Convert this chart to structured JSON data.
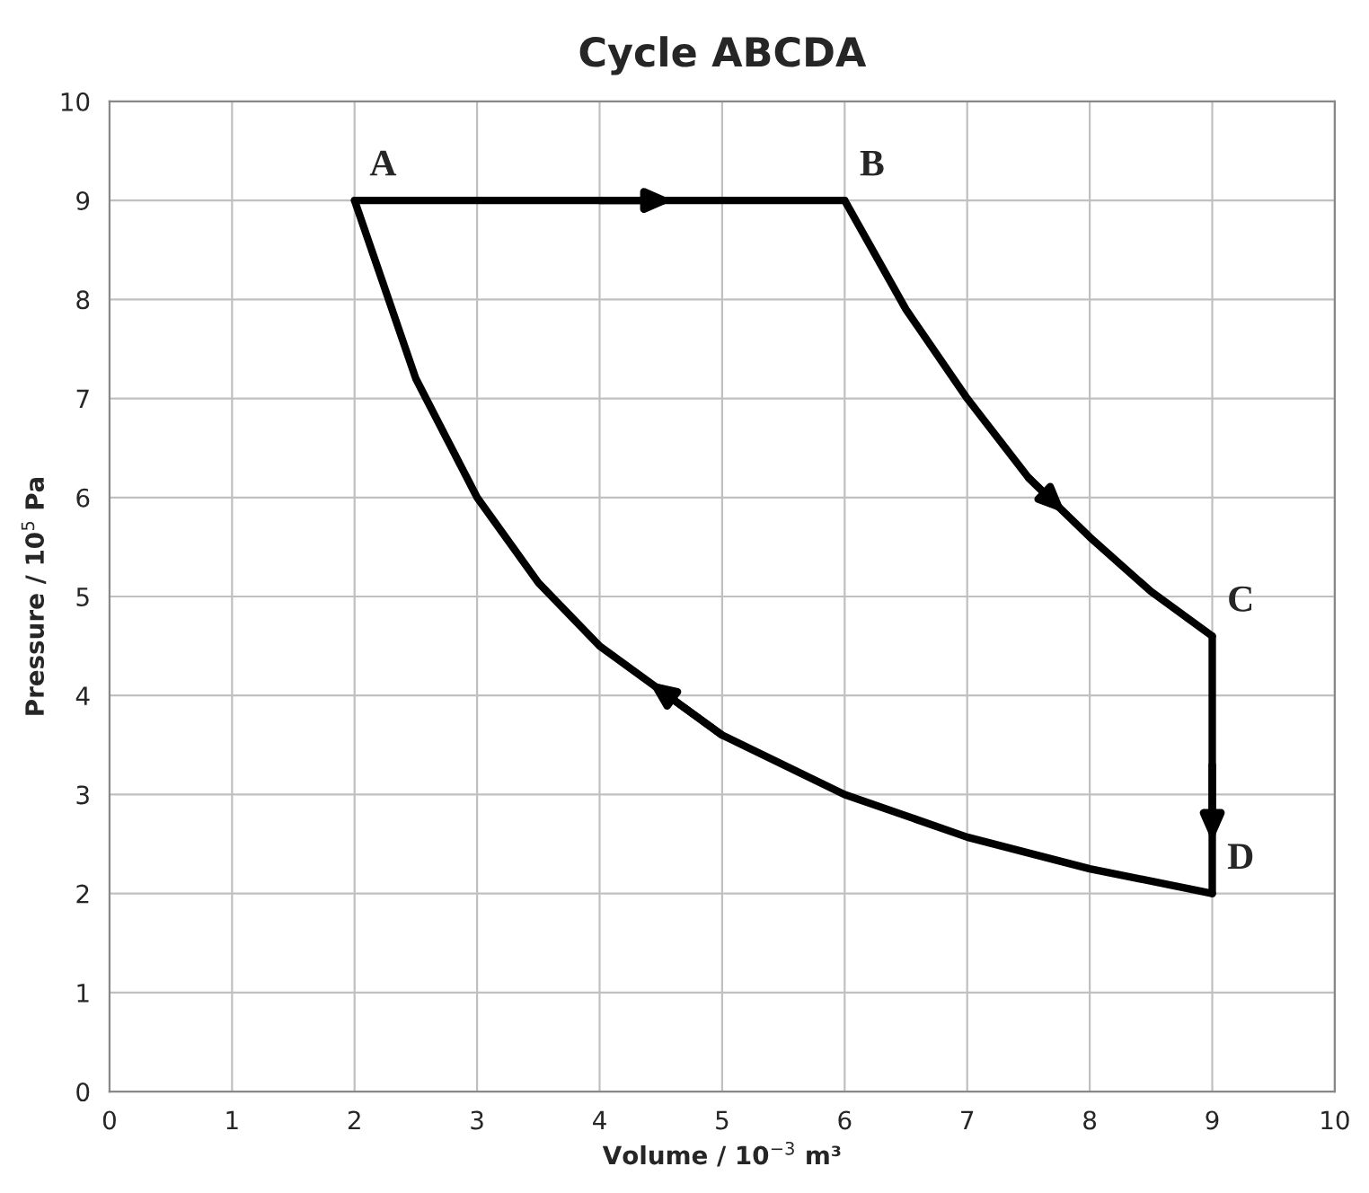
{
  "chart_data": {
    "type": "line",
    "title": "Cycle ABCDA",
    "xlabel": "Volume / 10$^{−3}$ m³",
    "ylabel": "Pressure / 10$^{5}$ Pa",
    "xlim": [
      0,
      10
    ],
    "ylim": [
      0,
      10
    ],
    "xticks": [
      0,
      1,
      2,
      3,
      4,
      5,
      6,
      7,
      8,
      9,
      10
    ],
    "yticks": [
      0,
      1,
      2,
      3,
      4,
      5,
      6,
      7,
      8,
      9,
      10
    ],
    "grid": true,
    "marker": "none",
    "line_style": "solid",
    "series": [
      {
        "color": "#000000",
        "x": [
          2,
          3,
          4,
          5,
          6
        ],
        "values": [
          9,
          9,
          9,
          9,
          9
        ]
      },
      {
        "color": "#000000",
        "x": [
          6,
          6.5,
          7,
          7.5,
          8,
          8.5,
          9
        ],
        "values": [
          9,
          7.9,
          7.0,
          6.2,
          5.6,
          5.05,
          4.6
        ]
      },
      {
        "color": "#000000",
        "x": [
          9,
          9,
          9
        ],
        "values": [
          4.6,
          3.3,
          2
        ]
      },
      {
        "color": "#000000",
        "x": [
          9,
          8,
          7,
          6,
          5,
          4,
          3.5,
          3,
          2.5,
          2
        ],
        "values": [
          2,
          2.25,
          2.57,
          3,
          3.6,
          4.5,
          5.14,
          6,
          7.2,
          9
        ]
      }
    ],
    "annotations": [
      {
        "text": "A",
        "x": 2,
        "y": 9
      },
      {
        "text": "B",
        "x": 6,
        "y": 9
      },
      {
        "text": "C",
        "x": 9,
        "y": 4.6
      },
      {
        "text": "D",
        "x": 9,
        "y": 2
      }
    ]
  }
}
